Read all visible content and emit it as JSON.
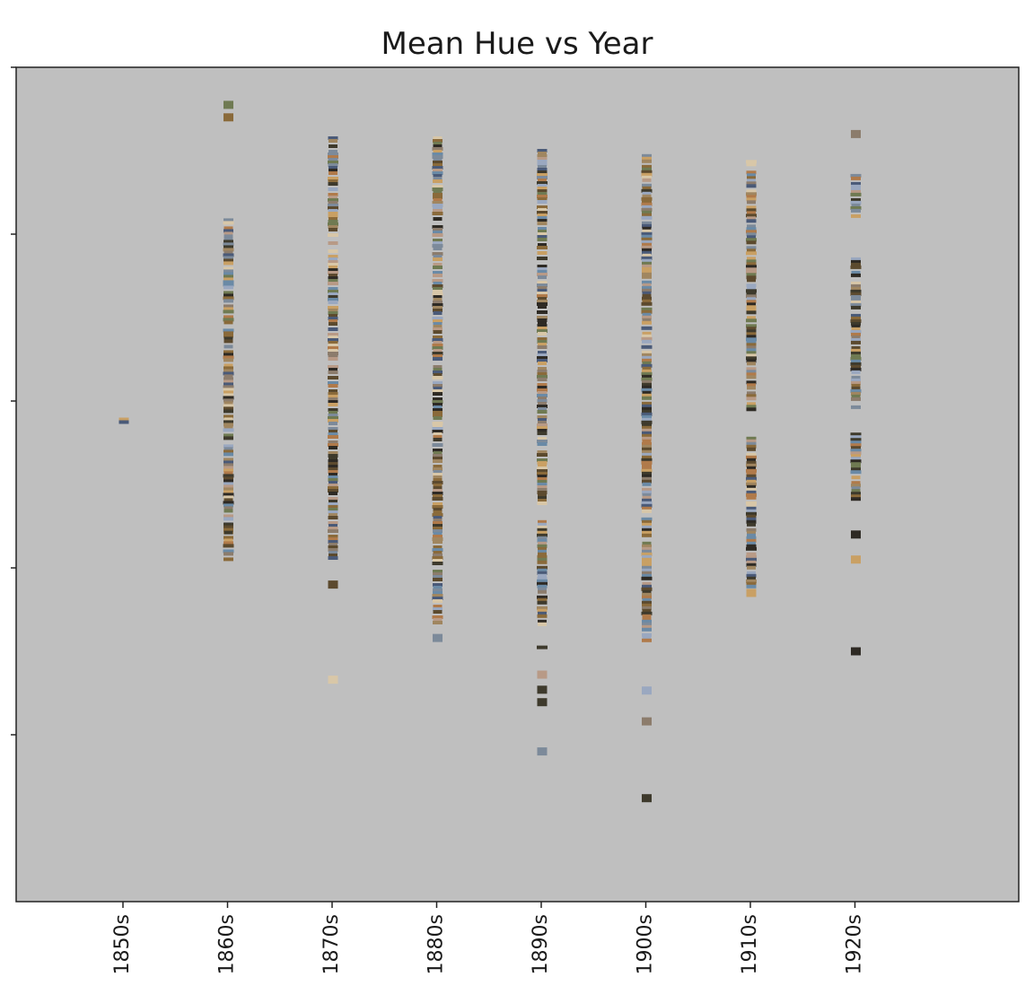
{
  "chart_data": {
    "type": "scatter",
    "title": "Mean Hue vs Year",
    "xlabel": "",
    "ylabel": "",
    "x_categories": [
      "1850s",
      "1860s",
      "1870s",
      "1880s",
      "1890s",
      "1900s",
      "1910s",
      "1920s"
    ],
    "y_tick_labels": [],
    "ylim": [
      0,
      1
    ],
    "grid": false,
    "background_color": "#bfbfbf",
    "marker": "painting-thumbnail",
    "thumbnail_palette": [
      "#8a6a3a",
      "#c9a064",
      "#5c4a2e",
      "#6f7a52",
      "#3e3a2c",
      "#a08660",
      "#7c8a9a",
      "#4a5a78",
      "#9aa8c0",
      "#d8c7a8",
      "#b07a4a",
      "#2e2a24",
      "#6a8aa6",
      "#8c7c6c",
      "#b89a86"
    ],
    "series": [
      {
        "name": "",
        "category": "1850s",
        "hue_ranges": [
          [
            0.574,
            0.578
          ]
        ],
        "isolated": []
      },
      {
        "name": "",
        "category": "1860s",
        "hue_ranges": [
          [
            0.41,
            0.82
          ],
          [
            0.44,
            0.452
          ]
        ],
        "isolated": [
          0.94,
          0.955
        ]
      },
      {
        "name": "",
        "category": "1870s",
        "hue_ranges": [
          [
            0.41,
            0.915
          ]
        ],
        "isolated": [
          0.38,
          0.266
        ]
      },
      {
        "name": "",
        "category": "1880s",
        "hue_ranges": [
          [
            0.332,
            0.915
          ]
        ],
        "isolated": [
          0.316
        ]
      },
      {
        "name": "",
        "category": "1890s",
        "hue_ranges": [
          [
            0.475,
            0.9
          ],
          [
            0.33,
            0.455
          ],
          [
            0.304,
            0.308
          ]
        ],
        "isolated": [
          0.272,
          0.254,
          0.239,
          0.18
        ]
      },
      {
        "name": "",
        "category": "1900s",
        "hue_ranges": [
          [
            0.31,
            0.897
          ]
        ],
        "isolated": [
          0.253,
          0.216,
          0.124
        ]
      },
      {
        "name": "",
        "category": "1910s",
        "hue_ranges": [
          [
            0.59,
            0.89
          ],
          [
            0.37,
            0.555
          ]
        ],
        "isolated": [
          0.37
        ]
      },
      {
        "name": "",
        "category": "1920s",
        "hue_ranges": [
          [
            0.82,
            0.87
          ],
          [
            0.58,
            0.77
          ],
          [
            0.47,
            0.56
          ]
        ],
        "isolated": [
          0.92,
          0.44,
          0.41,
          0.3
        ]
      }
    ]
  }
}
